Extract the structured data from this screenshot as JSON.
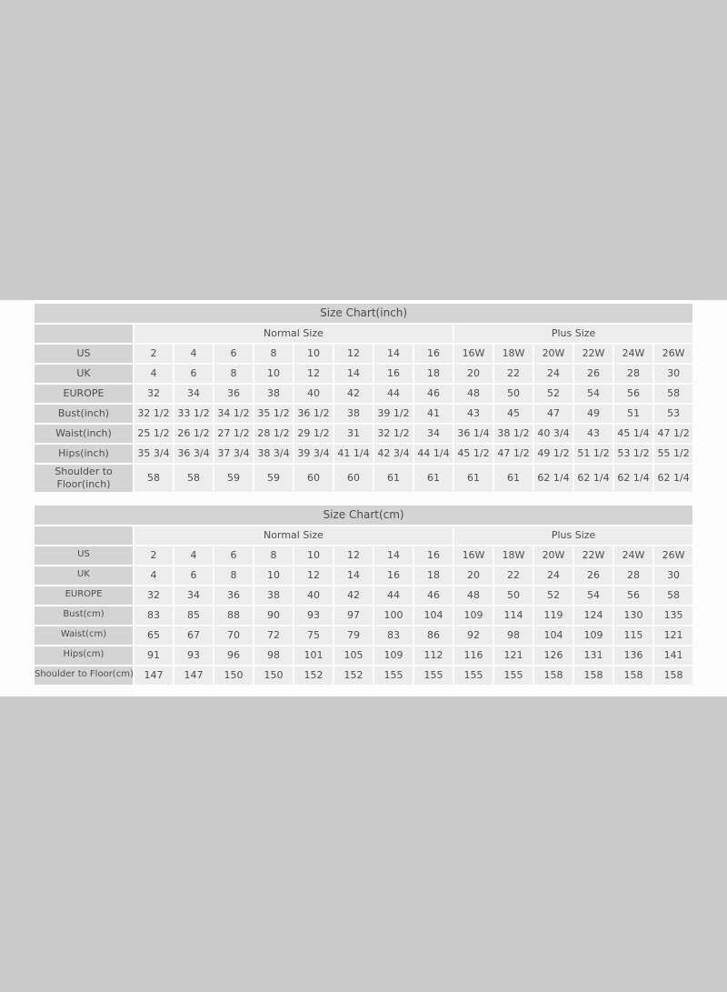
{
  "colors": {
    "page_background": "#c9c9c9",
    "panel_background": "#fdfdfd",
    "header_cell_background": "#d4d4d4",
    "data_cell_background": "#ededed",
    "text": "#4d4d4d"
  },
  "tables": [
    {
      "title": "Size Chart(inch)",
      "group_headers": [
        {
          "label": "Normal Size",
          "span": 8
        },
        {
          "label": "Plus Size",
          "span": 6
        }
      ],
      "rows": [
        {
          "label": "US",
          "values": [
            "2",
            "4",
            "6",
            "8",
            "10",
            "12",
            "14",
            "16",
            "16W",
            "18W",
            "20W",
            "22W",
            "24W",
            "26W"
          ]
        },
        {
          "label": "UK",
          "values": [
            "4",
            "6",
            "8",
            "10",
            "12",
            "14",
            "16",
            "18",
            "20",
            "22",
            "24",
            "26",
            "28",
            "30"
          ]
        },
        {
          "label": "EUROPE",
          "values": [
            "32",
            "34",
            "36",
            "38",
            "40",
            "42",
            "44",
            "46",
            "48",
            "50",
            "52",
            "54",
            "56",
            "58"
          ]
        },
        {
          "label": "Bust(inch)",
          "values": [
            "32 1/2",
            "33 1/2",
            "34 1/2",
            "35 1/2",
            "36 1/2",
            "38",
            "39 1/2",
            "41",
            "43",
            "45",
            "47",
            "49",
            "51",
            "53"
          ]
        },
        {
          "label": "Waist(inch)",
          "values": [
            "25 1/2",
            "26 1/2",
            "27 1/2",
            "28 1/2",
            "29 1/2",
            "31",
            "32 1/2",
            "34",
            "36 1/4",
            "38 1/2",
            "40 3/4",
            "43",
            "45 1/4",
            "47 1/2"
          ]
        },
        {
          "label": "Hips(inch)",
          "values": [
            "35 3/4",
            "36 3/4",
            "37 3/4",
            "38 3/4",
            "39 3/4",
            "41 1/4",
            "42 3/4",
            "44 1/4",
            "45 1/2",
            "47 1/2",
            "49 1/2",
            "51 1/2",
            "53 1/2",
            "55 1/2"
          ]
        },
        {
          "label": "Shoulder to Floor(inch)",
          "values": [
            "58",
            "58",
            "59",
            "59",
            "60",
            "60",
            "61",
            "61",
            "61",
            "61",
            "62 1/4",
            "62 1/4",
            "62 1/4",
            "62 1/4"
          ]
        }
      ]
    },
    {
      "title": "Size Chart(cm)",
      "group_headers": [
        {
          "label": "Normal Size",
          "span": 8
        },
        {
          "label": "Plus Size",
          "span": 6
        }
      ],
      "rows": [
        {
          "label": "US",
          "values": [
            "2",
            "4",
            "6",
            "8",
            "10",
            "12",
            "14",
            "16",
            "16W",
            "18W",
            "20W",
            "22W",
            "24W",
            "26W"
          ]
        },
        {
          "label": "UK",
          "values": [
            "4",
            "6",
            "8",
            "10",
            "12",
            "14",
            "16",
            "18",
            "20",
            "22",
            "24",
            "26",
            "28",
            "30"
          ]
        },
        {
          "label": "EUROPE",
          "values": [
            "32",
            "34",
            "36",
            "38",
            "40",
            "42",
            "44",
            "46",
            "48",
            "50",
            "52",
            "54",
            "56",
            "58"
          ]
        },
        {
          "label": "Bust(cm)",
          "values": [
            "83",
            "85",
            "88",
            "90",
            "93",
            "97",
            "100",
            "104",
            "109",
            "114",
            "119",
            "124",
            "130",
            "135"
          ]
        },
        {
          "label": "Waist(cm)",
          "values": [
            "65",
            "67",
            "70",
            "72",
            "75",
            "79",
            "83",
            "86",
            "92",
            "98",
            "104",
            "109",
            "115",
            "121"
          ]
        },
        {
          "label": "Hips(cm)",
          "values": [
            "91",
            "93",
            "96",
            "98",
            "101",
            "105",
            "109",
            "112",
            "116",
            "121",
            "126",
            "131",
            "136",
            "141"
          ]
        },
        {
          "label": "Shoulder to Floor(cm)",
          "values": [
            "147",
            "147",
            "150",
            "150",
            "152",
            "152",
            "155",
            "155",
            "155",
            "155",
            "158",
            "158",
            "158",
            "158"
          ]
        }
      ]
    }
  ]
}
